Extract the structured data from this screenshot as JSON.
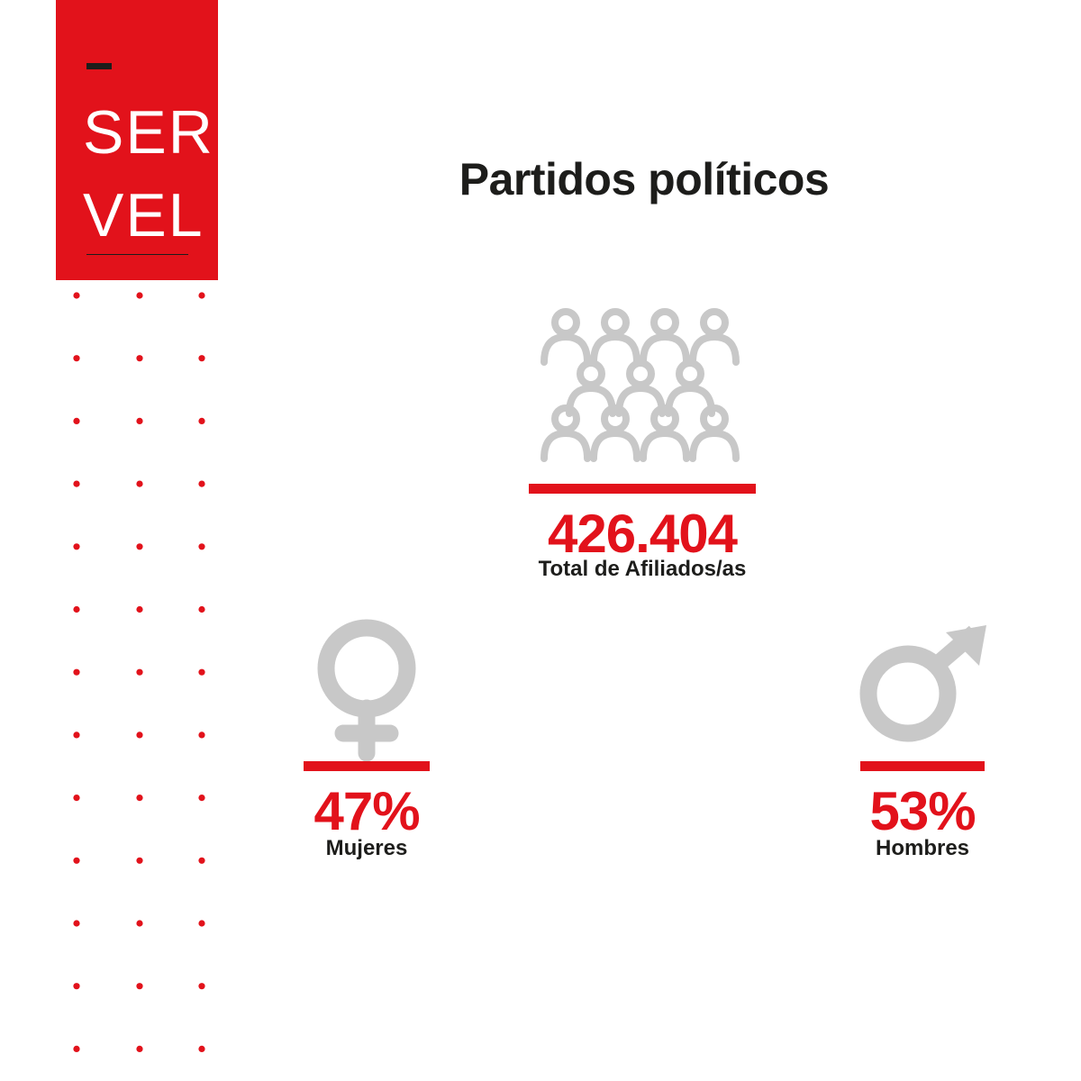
{
  "logo": {
    "line1": "SER",
    "line2": "VEL"
  },
  "title": "Partidos políticos",
  "total": {
    "value": "426.404",
    "label": "Total de Afiliados/as"
  },
  "women": {
    "value": "47%",
    "label": "Mujeres",
    "icon": "female-symbol-icon"
  },
  "men": {
    "value": "53%",
    "label": "Hombres",
    "icon": "male-symbol-icon"
  },
  "people_icon": "crowd-icon",
  "colors": {
    "accent": "#e2121b",
    "icon_gray": "#c8c8c8",
    "text": "#1d1d1b"
  }
}
